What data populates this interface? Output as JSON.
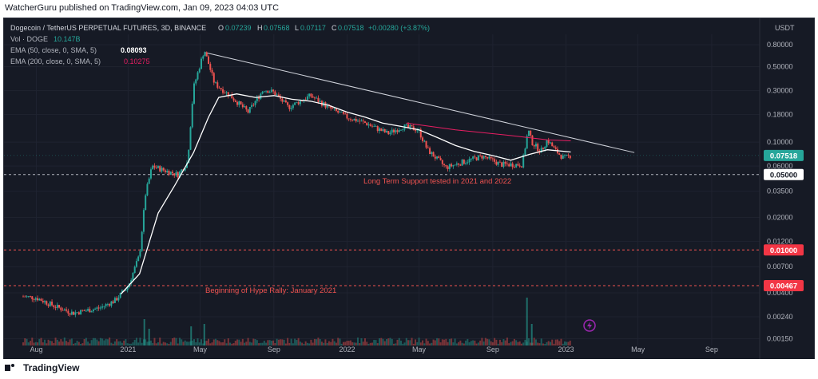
{
  "header": {
    "publisher_line": "WatcherGuru published on TradingView.com, Jan 09, 2023 04:03 UTC"
  },
  "legend": {
    "symbol": "Dogecoin / TetherUS PERPETUAL FUTURES, 3D, BINANCE",
    "o_label": "O",
    "o": "0.07239",
    "h_label": "H",
    "h": "0.07568",
    "l_label": "L",
    "l": "0.07117",
    "c_label": "C",
    "c": "0.07518",
    "change": "+0.00280 (+3.87%)",
    "vol_label": "Vol · DOGE",
    "vol": "10.147B",
    "ema50_label": "EMA (50, close, 0, SMA, 5)",
    "ema50": "0.08093",
    "ema200_label": "EMA (200, close, 0, SMA, 5)",
    "ema200": "0.10275"
  },
  "annotations": {
    "support": "Long Term Support tested in 2021 and 2022",
    "hype": "Beginning of Hype Rally: January 2021"
  },
  "footer": {
    "brand": "TradingView"
  },
  "colors": {
    "background": "#161a25",
    "up": "#26a69a",
    "down": "#ef5350",
    "ema50": "#ffffff",
    "ema200": "#e91e63",
    "trendline": "#d1d4dc",
    "dashed_red": "#ef5350",
    "dashed_white": "#b2b5be",
    "price_badge": "#26a69a",
    "level_badge_red": "#f23645",
    "text": "#b2b5be",
    "annotation": "#ef5350"
  },
  "chart_data": {
    "type": "candlestick",
    "title": "Dogecoin / TetherUS PERPETUAL FUTURES, 3D, BINANCE",
    "yscale": "log",
    "ylim": [
      0.0013,
      1.0
    ],
    "y_axis_unit": "USDT",
    "y_ticks": [
      "0.80000",
      "0.50000",
      "0.30000",
      "0.18000",
      "0.10000",
      "0.06000",
      "0.03500",
      "0.02000",
      "0.01200",
      "0.00700",
      "0.00400",
      "0.00240",
      "0.00150"
    ],
    "x_ticks": [
      "Aug",
      "2021",
      "May",
      "Sep",
      "2022",
      "May",
      "Sep",
      "2023",
      "May",
      "Sep"
    ],
    "x_tick_dates": [
      "2020-08-01",
      "2021-01-01",
      "2021-05-01",
      "2021-09-01",
      "2022-01-01",
      "2022-05-01",
      "2022-09-01",
      "2023-01-01",
      "2023-05-01",
      "2023-09-01"
    ],
    "price_path": [
      [
        "2020-07-10",
        0.0037
      ],
      [
        "2020-08-01",
        0.0036
      ],
      [
        "2020-09-01",
        0.003
      ],
      [
        "2020-10-01",
        0.0026
      ],
      [
        "2020-11-15",
        0.0029
      ],
      [
        "2020-12-10",
        0.0034
      ],
      [
        "2021-01-01",
        0.0046
      ],
      [
        "2021-01-20",
        0.009
      ],
      [
        "2021-01-30",
        0.033
      ],
      [
        "2021-02-10",
        0.06
      ],
      [
        "2021-03-01",
        0.055
      ],
      [
        "2021-03-25",
        0.05
      ],
      [
        "2021-04-10",
        0.065
      ],
      [
        "2021-04-20",
        0.32
      ],
      [
        "2021-05-08",
        0.72
      ],
      [
        "2021-05-25",
        0.35
      ],
      [
        "2021-06-20",
        0.27
      ],
      [
        "2021-07-20",
        0.19
      ],
      [
        "2021-08-15",
        0.31
      ],
      [
        "2021-09-01",
        0.29
      ],
      [
        "2021-09-25",
        0.21
      ],
      [
        "2021-11-01",
        0.27
      ],
      [
        "2021-12-01",
        0.21
      ],
      [
        "2022-01-01",
        0.17
      ],
      [
        "2022-02-01",
        0.15
      ],
      [
        "2022-03-10",
        0.12
      ],
      [
        "2022-04-05",
        0.14
      ],
      [
        "2022-04-30",
        0.13
      ],
      [
        "2022-05-15",
        0.085
      ],
      [
        "2022-06-15",
        0.058
      ],
      [
        "2022-07-15",
        0.066
      ],
      [
        "2022-08-15",
        0.074
      ],
      [
        "2022-09-15",
        0.062
      ],
      [
        "2022-10-20",
        0.062
      ],
      [
        "2022-10-30",
        0.13
      ],
      [
        "2022-11-05",
        0.1
      ],
      [
        "2022-11-20",
        0.082
      ],
      [
        "2022-12-01",
        0.105
      ],
      [
        "2022-12-15",
        0.083
      ],
      [
        "2022-12-28",
        0.071
      ],
      [
        "2023-01-09",
        0.07518
      ]
    ],
    "ema50": [
      [
        "2020-12-20",
        0.0039
      ],
      [
        "2021-01-20",
        0.006
      ],
      [
        "2021-02-20",
        0.022
      ],
      [
        "2021-03-20",
        0.04
      ],
      [
        "2021-04-20",
        0.08
      ],
      [
        "2021-05-15",
        0.17
      ],
      [
        "2021-06-01",
        0.26
      ],
      [
        "2021-07-01",
        0.28
      ],
      [
        "2021-08-01",
        0.26
      ],
      [
        "2021-09-01",
        0.27
      ],
      [
        "2021-10-01",
        0.25
      ],
      [
        "2021-11-01",
        0.24
      ],
      [
        "2021-12-01",
        0.22
      ],
      [
        "2022-01-01",
        0.19
      ],
      [
        "2022-02-01",
        0.17
      ],
      [
        "2022-03-01",
        0.15
      ],
      [
        "2022-04-01",
        0.14
      ],
      [
        "2022-05-01",
        0.13
      ],
      [
        "2022-06-01",
        0.11
      ],
      [
        "2022-07-01",
        0.093
      ],
      [
        "2022-08-01",
        0.082
      ],
      [
        "2022-09-01",
        0.075
      ],
      [
        "2022-10-01",
        0.068
      ],
      [
        "2022-11-01",
        0.077
      ],
      [
        "2022-12-01",
        0.085
      ],
      [
        "2023-01-09",
        0.08093
      ]
    ],
    "ema200": [
      [
        "2022-04-10",
        0.15
      ],
      [
        "2022-07-01",
        0.13
      ],
      [
        "2022-10-01",
        0.115
      ],
      [
        "2022-12-01",
        0.105
      ],
      [
        "2023-01-09",
        0.10275
      ]
    ],
    "trendline": [
      [
        "2021-05-08",
        0.68
      ],
      [
        "2023-04-25",
        0.08
      ]
    ],
    "volume_spikes": [
      [
        "2021-01-28",
        0.55
      ],
      [
        "2021-02-05",
        0.35
      ],
      [
        "2021-04-16",
        0.4
      ],
      [
        "2021-05-08",
        0.45
      ],
      [
        "2022-10-28",
        1.0
      ],
      [
        "2022-11-05",
        0.45
      ]
    ],
    "horizontal_levels": [
      {
        "label": "0.05000",
        "value": 0.05,
        "style": "dashed-white"
      },
      {
        "label": "0.01000",
        "value": 0.01,
        "style": "dashed-red"
      },
      {
        "label": "0.00467",
        "value": 0.00467,
        "style": "dashed-red"
      }
    ],
    "last_price": {
      "label": "0.07518",
      "value": 0.07518
    }
  }
}
